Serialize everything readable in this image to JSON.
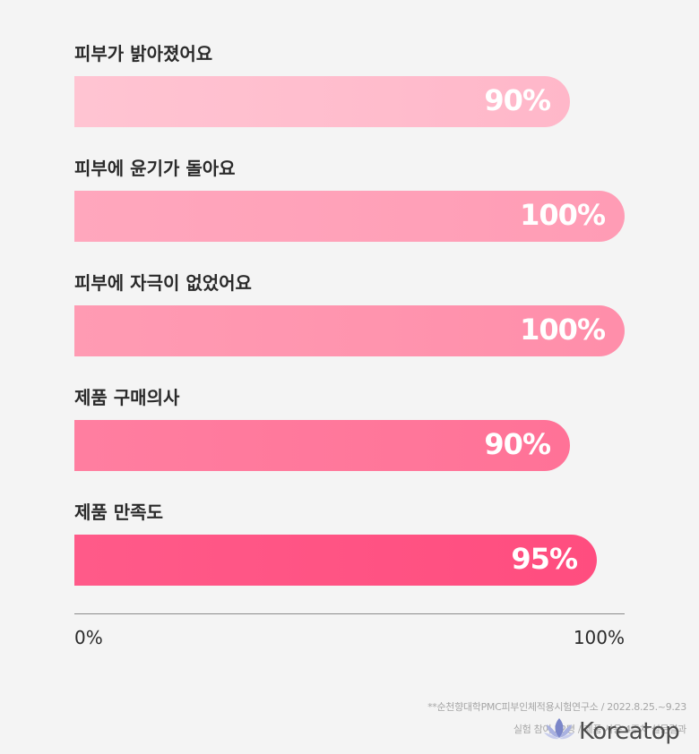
{
  "chart_data": {
    "type": "bar",
    "orientation": "horizontal",
    "categories": [
      "피부가 밝아졌어요",
      "피부에 윤기가 돌아요",
      "피부에 자극이 없었어요",
      "제품 구매의사",
      "제품 만족도"
    ],
    "values": [
      90,
      100,
      100,
      90,
      95
    ],
    "value_labels": [
      "90%",
      "100%",
      "100%",
      "90%",
      "95%"
    ],
    "bar_colors": [
      [
        "#ffc4d2",
        "#ffb7c9"
      ],
      [
        "#ffa7bd",
        "#ff9cb5"
      ],
      [
        "#ff9bb3",
        "#ff8eaa"
      ],
      [
        "#ff7ea0",
        "#ff7297"
      ],
      [
        "#ff5a89",
        "#ff4d7f"
      ]
    ],
    "x_ticks": [
      "0%",
      "100%"
    ],
    "xlim": [
      0,
      100
    ]
  },
  "footnotes": [
    "**순천향대학PMC피부인체적용시험연구소 / 2022.8.25.~9.23",
    "실험 참여 22명 / 제품 사용 4주차 설문결과"
  ],
  "logo": {
    "text": "Koreatop",
    "icon": "lotus-icon",
    "color": "#7b86c9"
  }
}
